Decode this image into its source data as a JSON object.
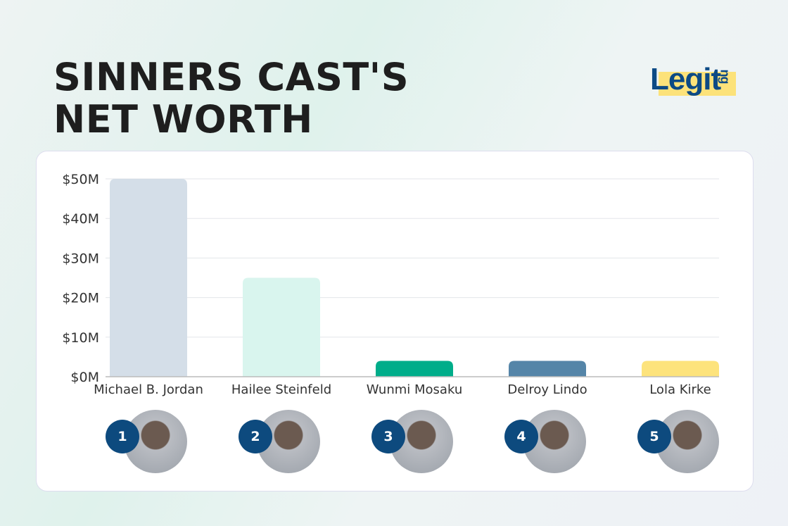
{
  "title": "SINNERS CAST'S NET WORTH",
  "logo": "Legit.ng",
  "chart_data": {
    "type": "bar",
    "categories": [
      "Michael B. Jordan",
      "Hailee Steinfeld",
      "Wunmi Mosaku",
      "Delroy Lindo",
      "Lola Kirke"
    ],
    "values": [
      50,
      25,
      4,
      4,
      4
    ],
    "unit": "$M",
    "colors": [
      "#d4dee8",
      "#d9f5ee",
      "#00ad8a",
      "#5585a8",
      "#fde37c"
    ],
    "ylim": [
      0,
      50
    ],
    "yticks": [
      "$0M",
      "$10M",
      "$20M",
      "$30M",
      "$40M",
      "$50M"
    ],
    "grid": true,
    "ranks": [
      "1",
      "2",
      "3",
      "4",
      "5"
    ]
  }
}
